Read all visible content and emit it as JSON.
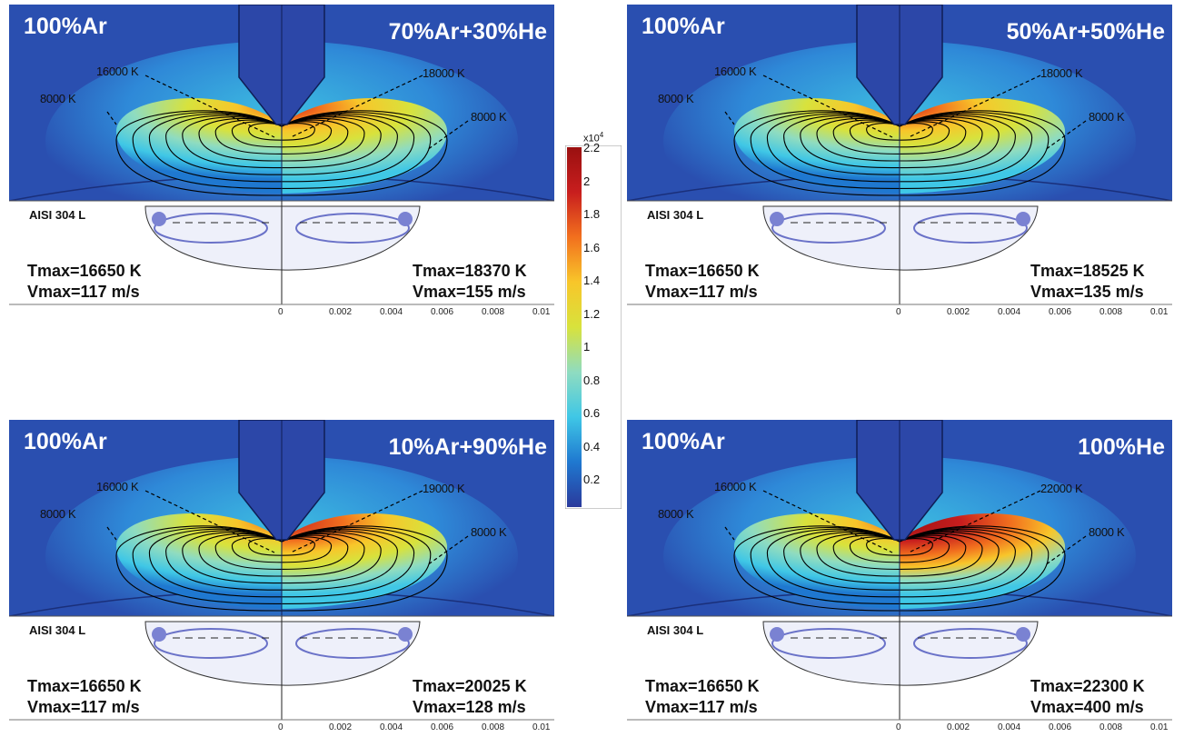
{
  "colorbar": {
    "exponent_label": "x10",
    "exponent_power": "4",
    "ticks": [
      "2.2",
      "2",
      "1.8",
      "1.6",
      "1.4",
      "1.2",
      "1",
      "0.8",
      "0.6",
      "0.4",
      "0.2"
    ],
    "colors": [
      "#2a3a9c",
      "#1f78d0",
      "#3fc7e6",
      "#8fdcc0",
      "#d8e23c",
      "#f8c62a",
      "#f2701e",
      "#c81e1e",
      "#9a1010"
    ]
  },
  "panels": [
    {
      "left_gas": "100%Ar",
      "right_gas": "70%Ar+30%He",
      "iso_left_outer": "8000 K",
      "iso_left_inner": "16000 K",
      "iso_right_inner": "18000 K",
      "iso_right_outer": "8000 K",
      "material": "AISI 304 L",
      "tmax_left": "Tmax=16650 K",
      "vmax_left": "Vmax=117 m/s",
      "tmax_right": "Tmax=18370 K",
      "vmax_right": "Vmax=155 m/s",
      "right_intensity": 0.6,
      "axis_ticks": [
        "0",
        "0.002",
        "0.004",
        "0.006",
        "0.008",
        "0.01"
      ]
    },
    {
      "left_gas": "100%Ar",
      "right_gas": "50%Ar+50%He",
      "iso_left_outer": "8000 K",
      "iso_left_inner": "16000 K",
      "iso_right_inner": "18000 K",
      "iso_right_outer": "8000 K",
      "material": "AISI 304 L",
      "tmax_left": "Tmax=16650 K",
      "vmax_left": "Vmax=117 m/s",
      "tmax_right": "Tmax=18525 K",
      "vmax_right": "Vmax=135 m/s",
      "right_intensity": 0.5,
      "axis_ticks": [
        "0",
        "0.002",
        "0.004",
        "0.006",
        "0.008",
        "0.01"
      ]
    },
    {
      "left_gas": "100%Ar",
      "right_gas": "10%Ar+90%He",
      "iso_left_outer": "8000 K",
      "iso_left_inner": "16000 K",
      "iso_right_inner": "19000 K",
      "iso_right_outer": "8000 K",
      "material": "AISI 304 L",
      "tmax_left": "Tmax=16650 K",
      "vmax_left": "Vmax=117 m/s",
      "tmax_right": "Tmax=20025 K",
      "vmax_right": "Vmax=128 m/s",
      "right_intensity": 0.8,
      "axis_ticks": [
        "0",
        "0.002",
        "0.004",
        "0.006",
        "0.008",
        "0.01"
      ]
    },
    {
      "left_gas": "100%Ar",
      "right_gas": "100%He",
      "iso_left_outer": "8000 K",
      "iso_left_inner": "16000 K",
      "iso_right_inner": "22000 K",
      "iso_right_outer": "8000 K",
      "material": "AISI 304 L",
      "tmax_left": "Tmax=16650 K",
      "vmax_left": "Vmax=117 m/s",
      "tmax_right": "Tmax=22300 K",
      "vmax_right": "Vmax=400 m/s",
      "right_intensity": 1.0,
      "axis_ticks": [
        "0",
        "0.002",
        "0.004",
        "0.006",
        "0.008",
        "0.01"
      ]
    }
  ]
}
